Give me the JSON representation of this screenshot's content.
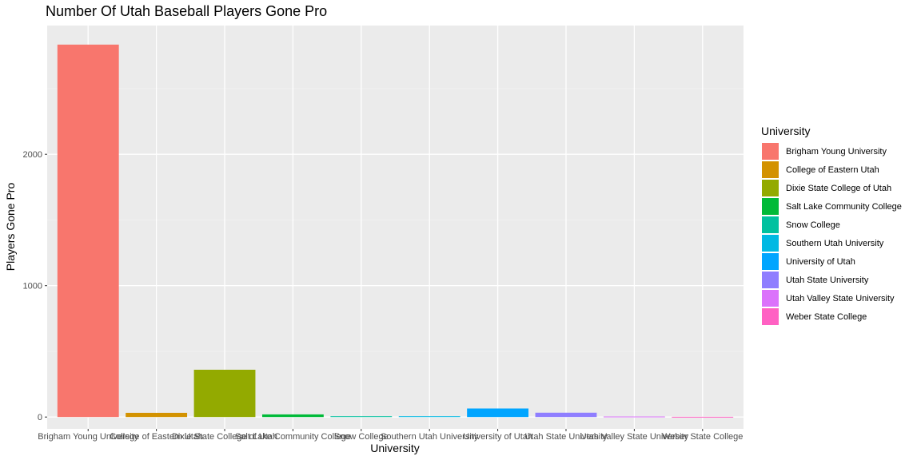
{
  "chart_data": {
    "type": "bar",
    "title": "Number Of Utah Baseball Players Gone Pro",
    "xlabel": "University",
    "ylabel": "Players Gone Pro",
    "categories": [
      "Brigham Young University",
      "College of Eastern Utah",
      "Dixie State College of Utah",
      "Salt Lake Community College",
      "Snow College",
      "Southern Utah University",
      "University of Utah",
      "Utah State University",
      "Utah Valley State University",
      "Weber State College"
    ],
    "values": [
      2835,
      32,
      360,
      20,
      6,
      6,
      65,
      33,
      4,
      2
    ],
    "ylim": [
      -90,
      2980
    ],
    "yticks": [
      0,
      1000,
      2000
    ],
    "grid": true,
    "legend": {
      "title": "University",
      "placement": "right"
    },
    "colors": [
      "#F8766D",
      "#D39200",
      "#93AA00",
      "#00BA38",
      "#00C19F",
      "#00B9E3",
      "#00A5FF",
      "#8F7EFF",
      "#DB72FB",
      "#FF61C3"
    ]
  }
}
